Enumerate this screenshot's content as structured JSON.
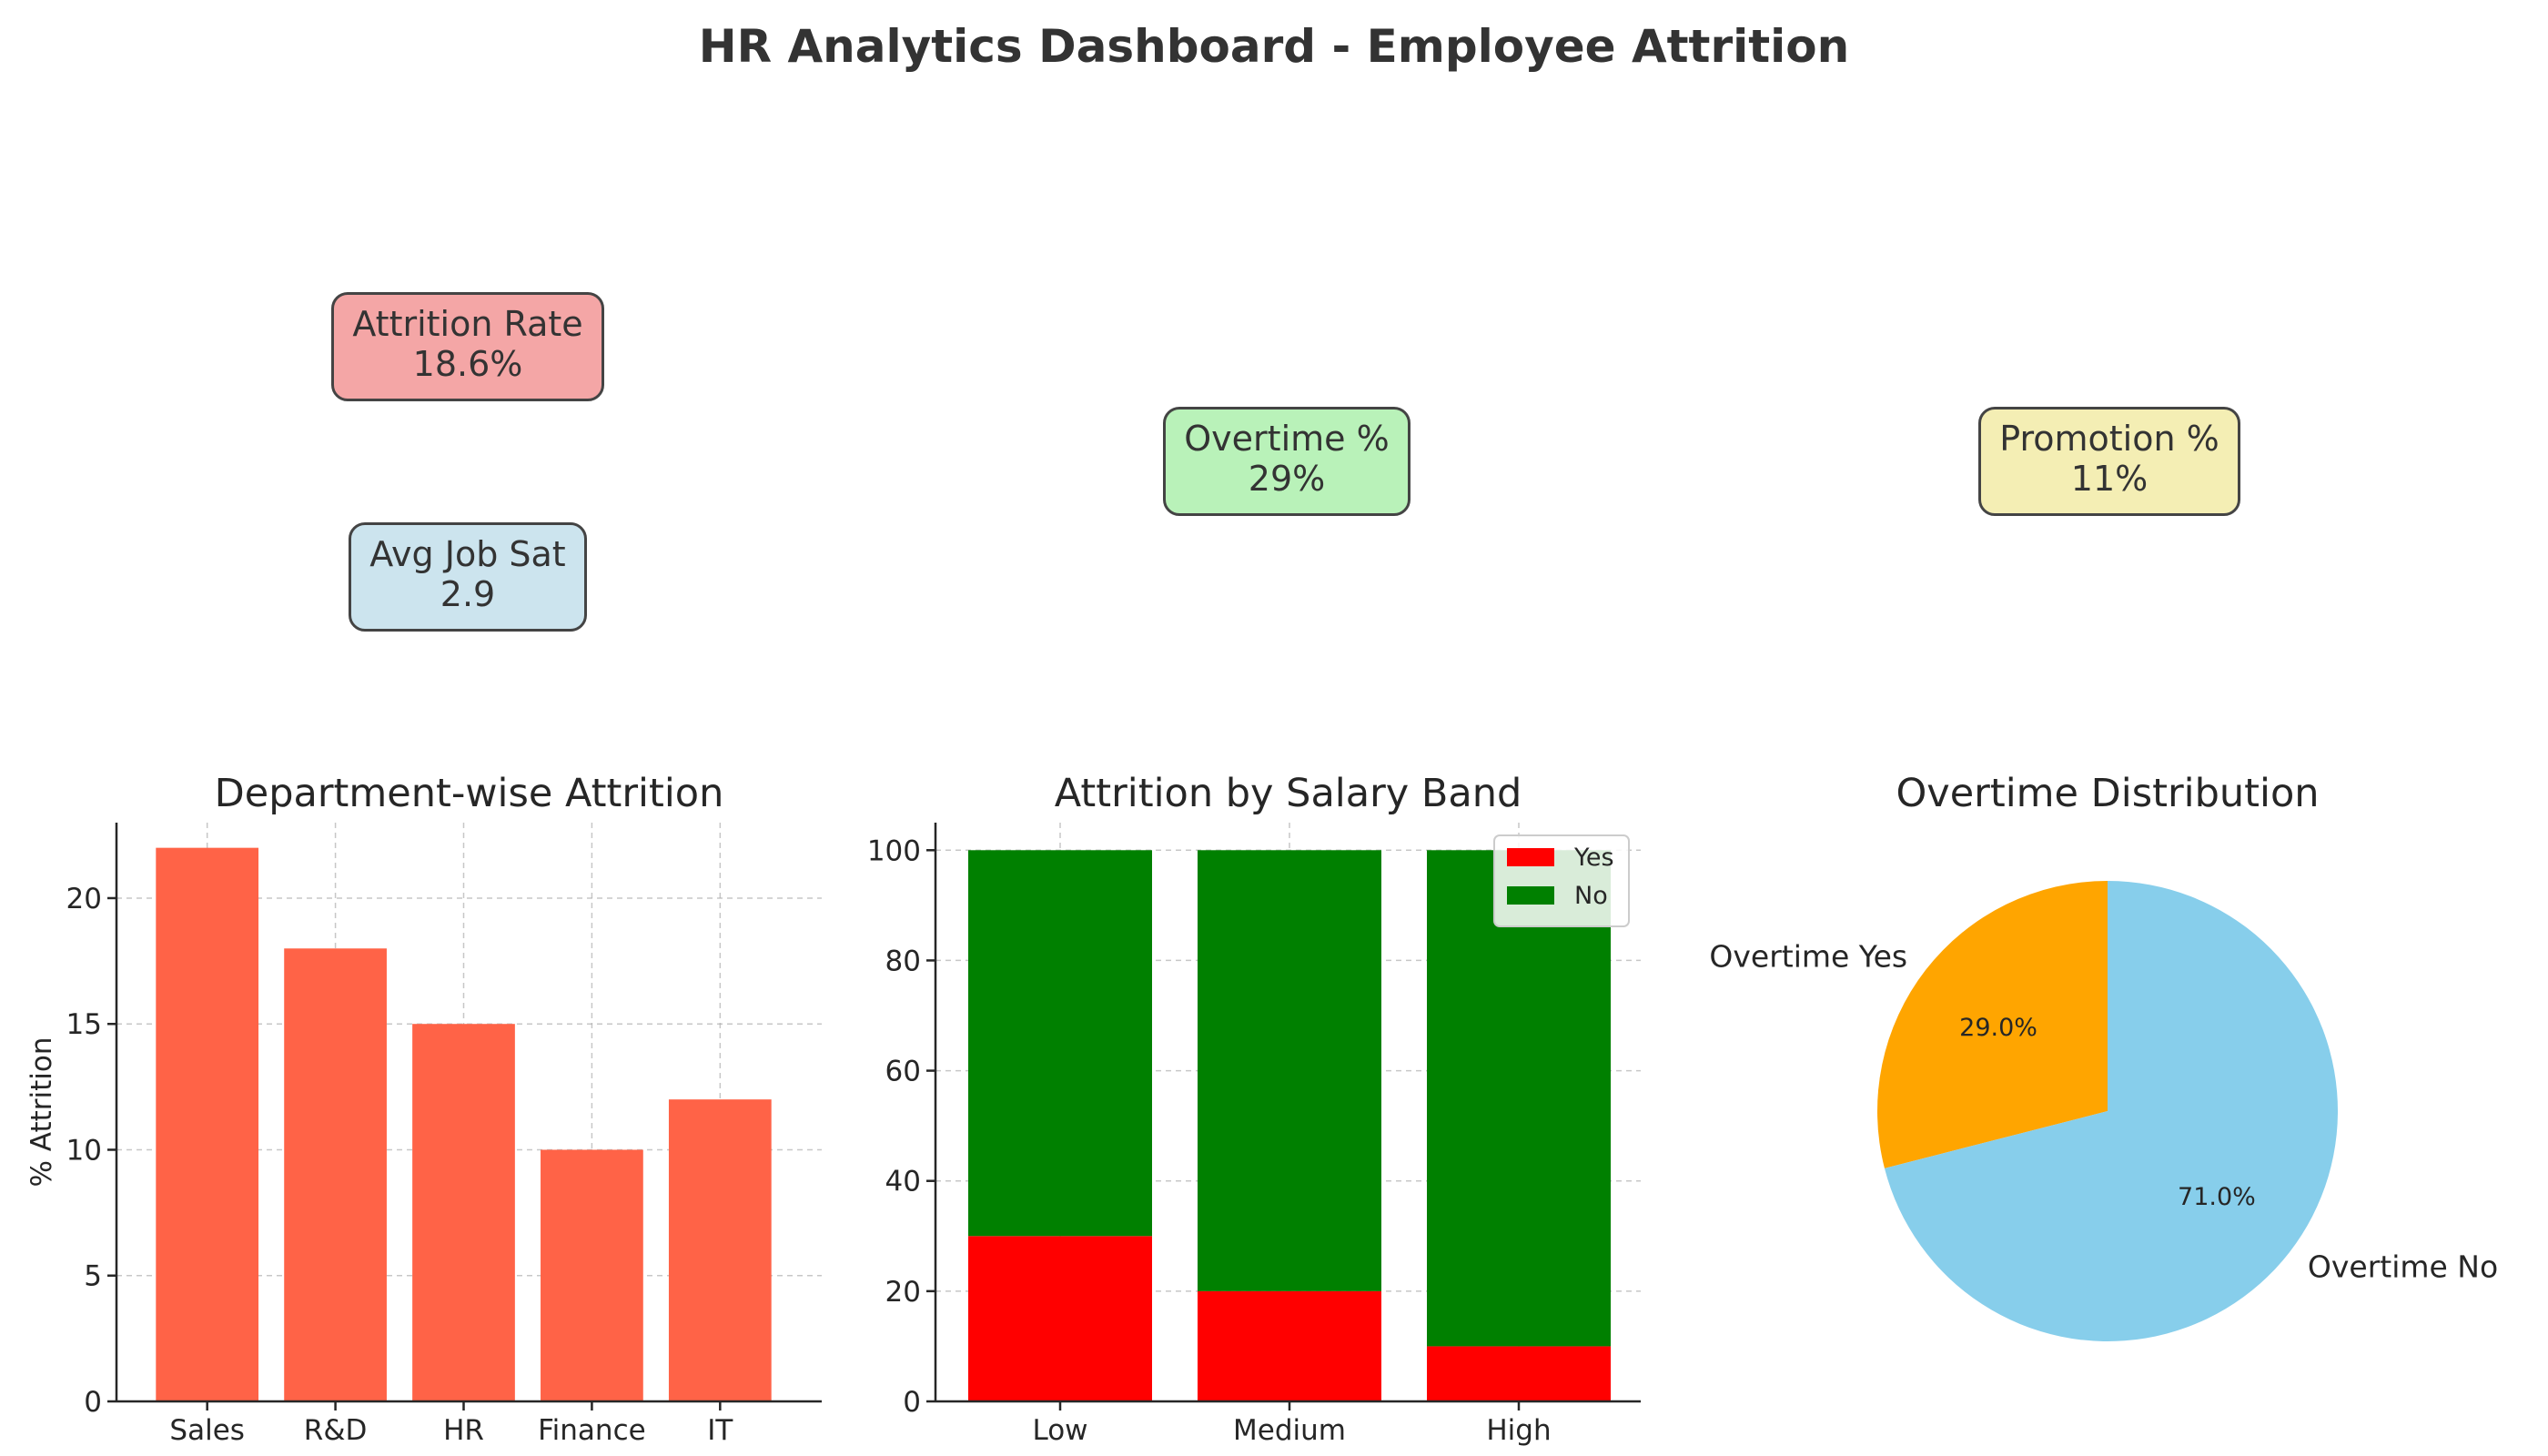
{
  "dashboard": {
    "title": "HR Analytics Dashboard - Employee Attrition"
  },
  "kpis": [
    {
      "label": "Attrition Rate",
      "value": "18.6%",
      "color": "#f4a6a6"
    },
    {
      "label": "Overtime %",
      "value": "29%",
      "color": "#b9f2b9"
    },
    {
      "label": "Promotion %",
      "value": "11%",
      "color": "#f4eeb4"
    },
    {
      "label": "Avg Job Sat",
      "value": "2.9",
      "color": "#cce4ee"
    }
  ],
  "chart_data": [
    {
      "type": "bar",
      "title": "Department-wise Attrition",
      "xlabel": "",
      "ylabel": "% Attrition",
      "categories": [
        "Sales",
        "R&D",
        "HR",
        "Finance",
        "IT"
      ],
      "values": [
        22,
        18,
        15,
        10,
        12
      ],
      "ylim": [
        0,
        23
      ],
      "yticks": [
        0,
        5,
        10,
        15,
        20
      ],
      "color": "#ff6347",
      "grid": true
    },
    {
      "type": "bar",
      "stacked": true,
      "title": "Attrition by Salary Band",
      "xlabel": "",
      "ylabel": "",
      "categories": [
        "Low",
        "Medium",
        "High"
      ],
      "series": [
        {
          "name": "Yes",
          "values": [
            30,
            20,
            10
          ],
          "color": "#ff0000"
        },
        {
          "name": "No",
          "values": [
            70,
            80,
            90
          ],
          "color": "#008000"
        }
      ],
      "ylim": [
        0,
        105
      ],
      "yticks": [
        0,
        20,
        40,
        60,
        80,
        100
      ],
      "legend": "top-right",
      "grid": true
    },
    {
      "type": "pie",
      "title": "Overtime Distribution",
      "labels": [
        "Overtime Yes",
        "Overtime No"
      ],
      "values": [
        29,
        71
      ],
      "pct_labels": [
        "29.0%",
        "71.0%"
      ],
      "colors": [
        "#ffa500",
        "#87ceeb"
      ]
    }
  ]
}
